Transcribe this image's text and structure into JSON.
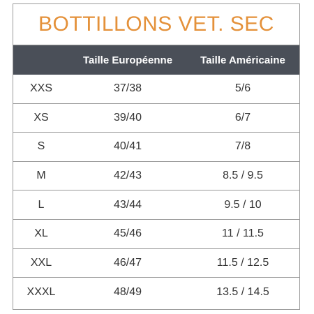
{
  "title": "BOTTILLONS VET. SEC",
  "columns": [
    "",
    "Taille Européenne",
    "Taille Américaine"
  ],
  "rows": [
    [
      "XXS",
      "37/38",
      "5/6"
    ],
    [
      "XS",
      "39/40",
      "6/7"
    ],
    [
      "S",
      "40/41",
      "7/8"
    ],
    [
      "M",
      "42/43",
      "8.5 / 9.5"
    ],
    [
      "L",
      "43/44",
      "9.5 / 10"
    ],
    [
      "XL",
      "45/46",
      "11 / 11.5"
    ],
    [
      "XXL",
      "46/47",
      "11.5 / 12.5"
    ],
    [
      "XXXL",
      "48/49",
      "13.5 / 14.5"
    ]
  ],
  "colors": {
    "title": "#e4913a",
    "header_bg": "#4a4f58",
    "border": "#9a9a9a"
  }
}
